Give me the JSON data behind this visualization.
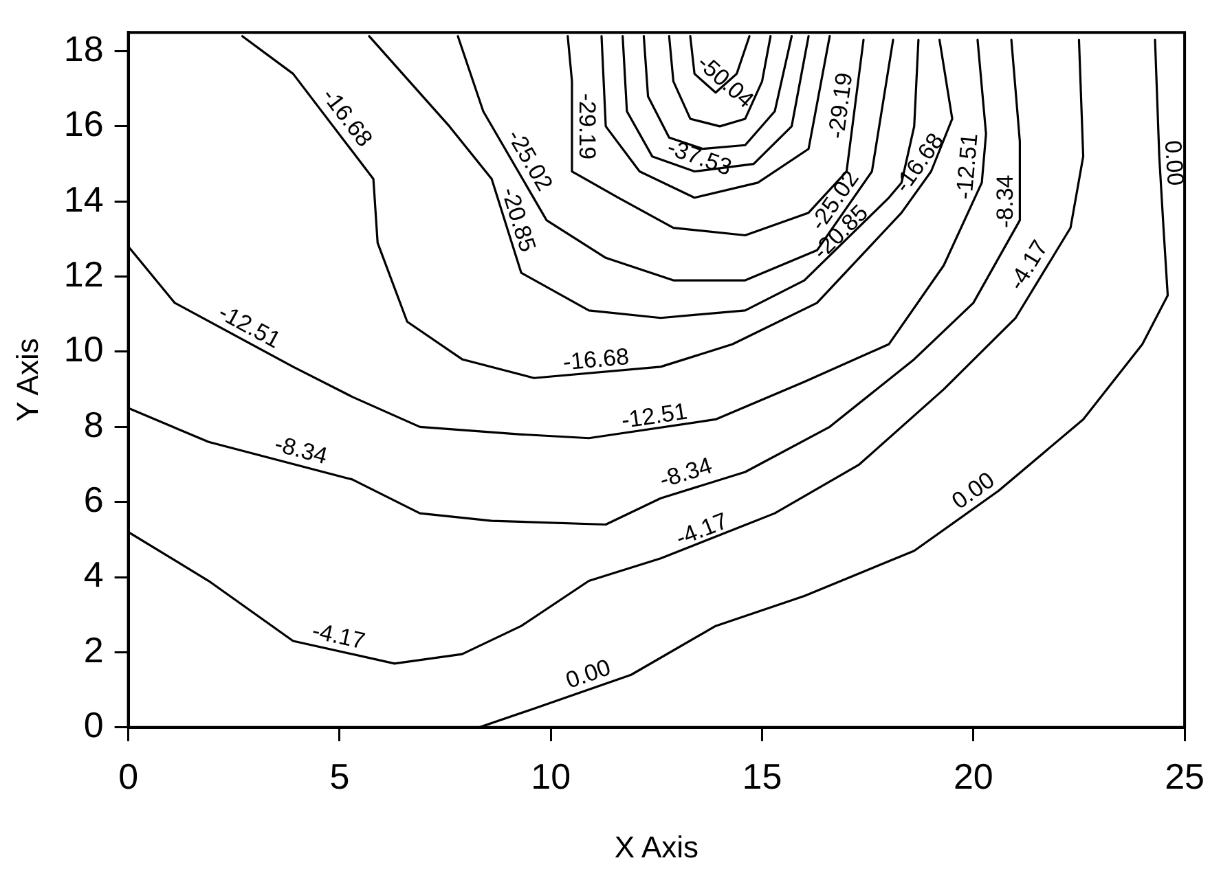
{
  "chart_data": {
    "type": "line",
    "xlabel": "X Axis",
    "ylabel": "Y Axis",
    "xlim": [
      0,
      25
    ],
    "ylim": [
      0,
      18.5
    ],
    "xticks": [
      0,
      5,
      10,
      15,
      20,
      25
    ],
    "yticks": [
      0,
      2,
      4,
      6,
      8,
      10,
      12,
      14,
      16,
      18
    ],
    "grid": false,
    "legend": false,
    "marker": "none",
    "line_style": "solid",
    "series": [
      {
        "color": "#000000",
        "x": [
          8.3,
          9.6,
          11.9,
          13.9,
          16.0,
          18.6,
          20.6,
          22.6,
          24.0,
          24.6,
          24.5,
          24.4,
          24.3
        ],
        "values": [
          0,
          0.5,
          1.4,
          2.7,
          3.5,
          4.7,
          6.3,
          8.2,
          10.2,
          11.5,
          13.3,
          15.2,
          18.3
        ]
      },
      {
        "color": "#000000",
        "x": [
          0,
          1.9,
          3.9,
          6.3,
          7.9,
          9.3,
          10.9,
          12.6,
          15.3,
          17.3,
          19.3,
          21.0,
          22.3,
          22.6,
          22.5
        ],
        "values": [
          5.2,
          3.9,
          2.3,
          1.7,
          1.95,
          2.7,
          3.9,
          4.5,
          5.7,
          7.0,
          9.0,
          10.9,
          13.3,
          15.2,
          18.3
        ]
      },
      {
        "color": "#000000",
        "x": [
          0,
          1.9,
          5.3,
          6.9,
          8.6,
          11.3,
          12.6,
          14.6,
          16.6,
          18.6,
          20.0,
          21.1,
          21.1,
          20.9
        ],
        "values": [
          8.5,
          7.6,
          6.6,
          5.7,
          5.5,
          5.4,
          6.1,
          6.8,
          8.0,
          9.8,
          11.3,
          13.5,
          15.6,
          18.3
        ]
      },
      {
        "color": "#000000",
        "x": [
          0,
          1.1,
          3.9,
          5.3,
          6.9,
          9.3,
          10.9,
          13.9,
          16.0,
          18.0,
          19.3,
          20.2,
          20.3,
          20.1
        ],
        "values": [
          12.8,
          11.3,
          9.6,
          8.8,
          8.0,
          7.8,
          7.7,
          8.2,
          9.2,
          10.2,
          12.3,
          14.5,
          15.8,
          18.3
        ]
      },
      {
        "color": "#000000",
        "x": [
          2.7,
          3.9,
          5.8,
          5.9,
          6.6,
          7.9,
          9.6,
          12.6,
          14.3,
          16.3,
          18.3,
          19.0,
          19.5,
          19.2
        ],
        "values": [
          18.4,
          17.4,
          14.6,
          12.9,
          10.8,
          9.8,
          9.3,
          9.6,
          10.2,
          11.3,
          13.7,
          14.8,
          16.2,
          18.3
        ]
      },
      {
        "color": "#000000",
        "x": [
          5.7,
          7.6,
          8.6,
          9.3,
          10.9,
          12.6,
          14.6,
          16.0,
          18.0,
          18.3,
          18.6,
          18.7
        ],
        "values": [
          18.4,
          16.0,
          14.6,
          12.1,
          11.1,
          10.9,
          11.1,
          11.9,
          14.1,
          14.5,
          16.0,
          18.3
        ]
      },
      {
        "color": "#000000",
        "x": [
          7.8,
          8.4,
          9.9,
          11.3,
          12.9,
          14.6,
          16.3,
          17.6,
          18.1
        ],
        "values": [
          18.4,
          16.4,
          13.5,
          12.5,
          11.9,
          11.9,
          12.7,
          14.8,
          18.3
        ]
      },
      {
        "color": "#000000",
        "x": [
          10.4,
          10.5,
          10.5,
          11.6,
          12.9,
          14.6,
          16.1,
          17.0,
          17.4
        ],
        "values": [
          18.4,
          17.2,
          14.8,
          14.1,
          13.3,
          13.1,
          13.7,
          14.8,
          18.3
        ]
      },
      {
        "color": "#000000",
        "x": [
          11.2,
          11.3,
          12.1,
          13.4,
          14.9,
          16.1,
          16.6
        ],
        "values": [
          18.4,
          16.0,
          14.8,
          14.1,
          14.5,
          15.4,
          18.4
        ]
      },
      {
        "color": "#000000",
        "x": [
          11.7,
          11.8,
          12.4,
          13.4,
          14.8,
          15.7,
          16.1
        ],
        "values": [
          18.4,
          16.4,
          15.2,
          14.8,
          15.0,
          16.0,
          18.4
        ]
      },
      {
        "color": "#000000",
        "x": [
          12.2,
          12.3,
          12.8,
          13.6,
          14.6,
          15.3,
          15.7
        ],
        "values": [
          18.4,
          16.8,
          15.7,
          15.4,
          15.5,
          16.4,
          18.4
        ]
      },
      {
        "color": "#000000",
        "x": [
          12.8,
          12.9,
          13.3,
          14.0,
          14.6,
          15.0,
          15.2
        ],
        "values": [
          18.4,
          17.2,
          16.2,
          16.0,
          16.2,
          17.2,
          18.4
        ]
      },
      {
        "color": "#000000",
        "x": [
          13.3,
          13.4,
          13.9,
          14.4,
          14.7
        ],
        "values": [
          18.4,
          17.4,
          16.9,
          17.4,
          18.4
        ]
      }
    ],
    "annotations": [
      {
        "text": "0.00",
        "x": 11.0,
        "y": 1.05
      },
      {
        "text": "0.00",
        "x": 20.2,
        "y": 5.98
      },
      {
        "text": "0.00",
        "x": 24.4,
        "y": 15.0
      },
      {
        "text": "-4.17",
        "x": 4.9,
        "y": 2.05
      },
      {
        "text": "-4.17",
        "x": 13.7,
        "y": 4.9
      },
      {
        "text": "-4.17",
        "x": 21.6,
        "y": 12.1
      },
      {
        "text": "-8.34",
        "x": 4.0,
        "y": 7.0
      },
      {
        "text": "-8.34",
        "x": 13.3,
        "y": 6.4
      },
      {
        "text": "-8.34",
        "x": 21.1,
        "y": 14.0
      },
      {
        "text": "-12.51",
        "x": 2.7,
        "y": 10.33
      },
      {
        "text": "-12.51",
        "x": 12.5,
        "y": 7.9
      },
      {
        "text": "-12.51",
        "x": 20.2,
        "y": 14.9
      },
      {
        "text": "-16.68",
        "x": 4.9,
        "y": 16.0
      },
      {
        "text": "-16.68",
        "x": 11.1,
        "y": 9.4
      },
      {
        "text": "-16.68",
        "x": 19.0,
        "y": 14.8
      },
      {
        "text": "-20.85",
        "x": 8.9,
        "y": 13.4
      },
      {
        "text": "-20.85",
        "x": 17.1,
        "y": 12.9
      },
      {
        "text": "-25.02",
        "x": 9.2,
        "y": 14.9
      },
      {
        "text": "-25.02",
        "x": 17.0,
        "y": 13.8
      },
      {
        "text": "-29.19",
        "x": 10.5,
        "y": 16.0
      },
      {
        "text": "-29.19",
        "x": 17.2,
        "y": 16.5
      },
      {
        "text": "-37.53",
        "x": 13.4,
        "y": 14.8
      },
      {
        "text": "-50.04",
        "x": 13.9,
        "y": 16.9
      }
    ]
  }
}
